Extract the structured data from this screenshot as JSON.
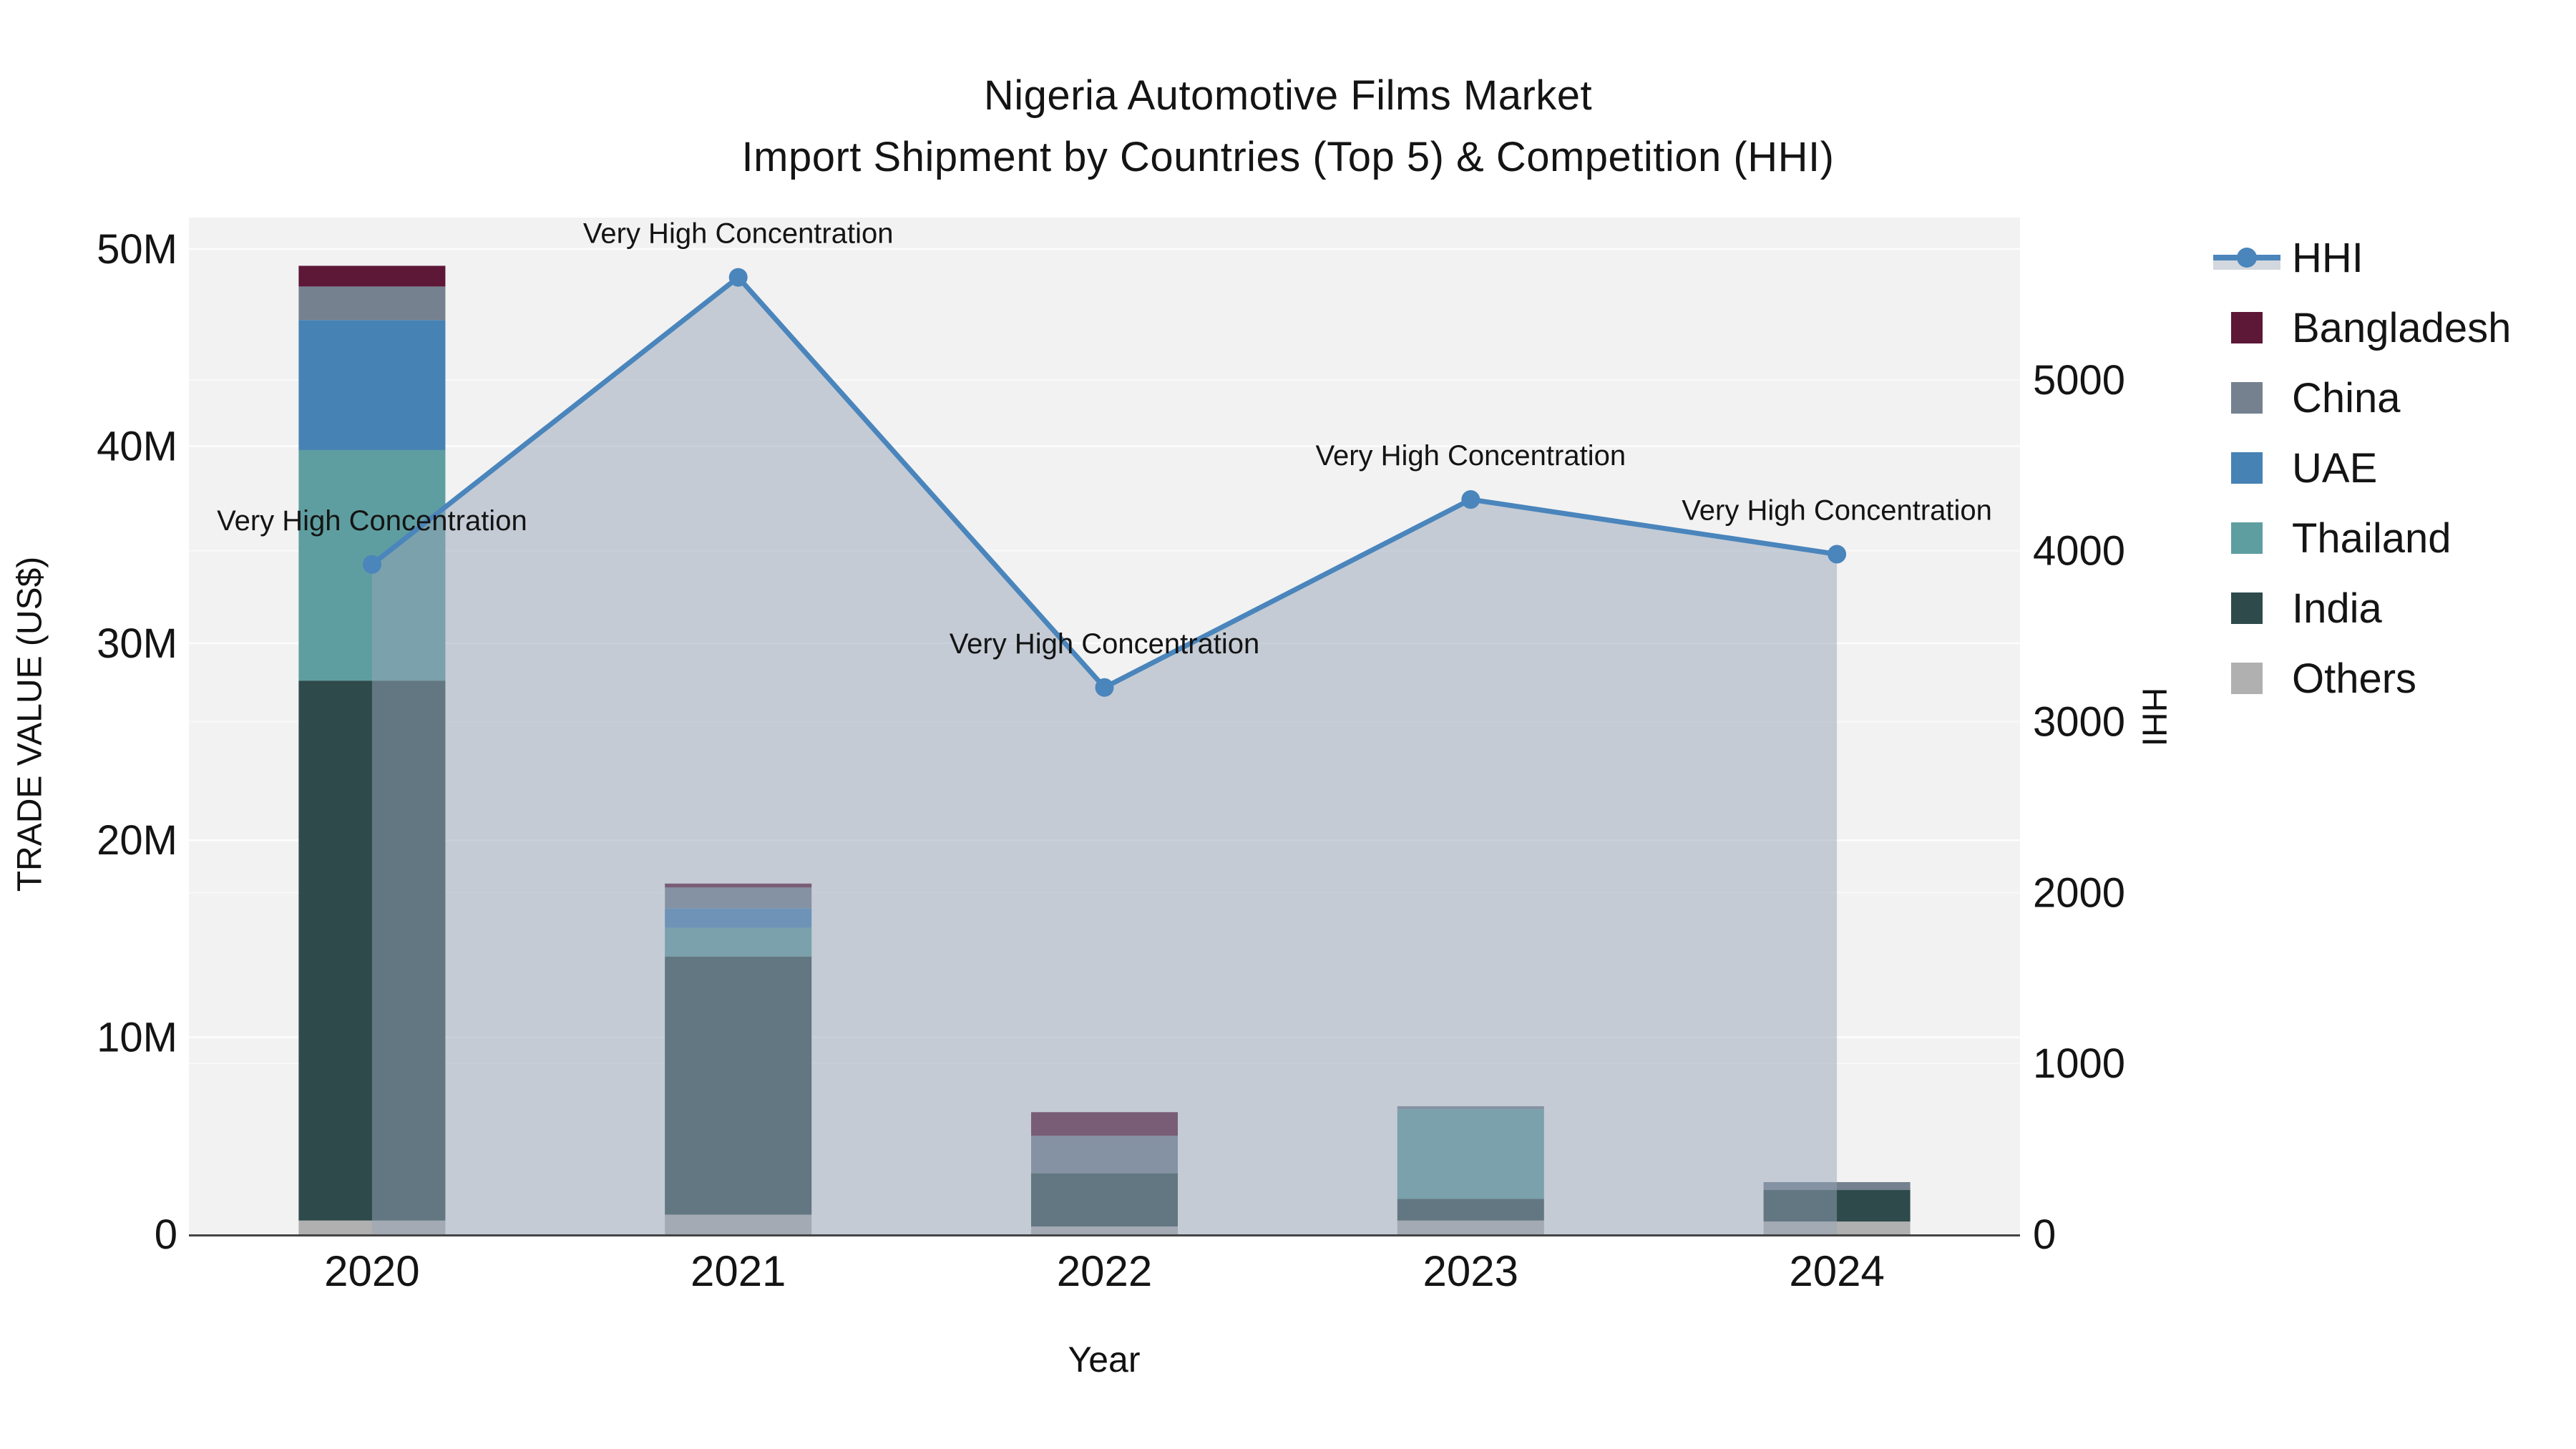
{
  "title": {
    "line1": "Nigeria Automotive Films Market",
    "line2": "Import Shipment by Countries (Top 5) & Competition (HHI)"
  },
  "axes": {
    "y_left_label": "TRADE VALUE (US$)",
    "y_right_label": "HHI",
    "x_label": "Year"
  },
  "colors": {
    "plot_background": "#f2f2f2",
    "axis_line": "#444444",
    "gridline": "#ffffff",
    "hhi_line": "#4a85bc",
    "hhi_area": "#96a3b8",
    "text": "#141414"
  },
  "chart_data": {
    "type": "combo_stacked_bar_line",
    "title": "Nigeria Automotive Films Market - Import Shipment by Countries (Top 5) & Competition (HHI)",
    "categories": [
      "2020",
      "2021",
      "2022",
      "2023",
      "2024"
    ],
    "bar_unit": "US$ million (trade value, left axis)",
    "bar_series": [
      {
        "name": "Others",
        "color": "#b0b0b0",
        "values_musd": [
          0.7,
          1.0,
          0.4,
          0.7,
          0.65
        ]
      },
      {
        "name": "India",
        "color": "#2e4a4a",
        "values_musd": [
          27.4,
          13.1,
          2.7,
          1.1,
          1.6
        ]
      },
      {
        "name": "Thailand",
        "color": "#5f9ea0",
        "values_musd": [
          11.7,
          1.45,
          0,
          4.55,
          0
        ]
      },
      {
        "name": "UAE",
        "color": "#4682b4",
        "values_musd": [
          6.6,
          1.0,
          0,
          0,
          0
        ]
      },
      {
        "name": "China",
        "color": "#75818f",
        "values_musd": [
          1.7,
          1.05,
          1.9,
          0.15,
          0.4
        ]
      },
      {
        "name": "Bangladesh",
        "color": "#5d1737",
        "values_musd": [
          1.05,
          0.2,
          1.2,
          0,
          0
        ]
      }
    ],
    "line_series": {
      "name": "HHI",
      "axis": "right",
      "color": "#4a85bc",
      "area_fill": "#96a3b8",
      "area_opacity": 0.5,
      "values": [
        3920,
        5600,
        3200,
        4300,
        3980
      ]
    },
    "point_annotations": [
      "Very High Concentration",
      "Very High Concentration",
      "Very High Concentration",
      "Very High Concentration",
      "Very High Concentration"
    ],
    "y_left": {
      "label": "TRADE VALUE (US$)",
      "ticks": [
        {
          "label": "0",
          "value": 0
        },
        {
          "label": "10M",
          "value": 10
        },
        {
          "label": "20M",
          "value": 20
        },
        {
          "label": "30M",
          "value": 30
        },
        {
          "label": "40M",
          "value": 40
        },
        {
          "label": "50M",
          "value": 50
        }
      ],
      "range_musd": [
        0,
        51.6
      ]
    },
    "y_right": {
      "label": "HHI",
      "ticks": [
        {
          "label": "0",
          "value": 0
        },
        {
          "label": "1000",
          "value": 1000
        },
        {
          "label": "2000",
          "value": 2000
        },
        {
          "label": "3000",
          "value": 3000
        },
        {
          "label": "4000",
          "value": 4000
        },
        {
          "label": "5000",
          "value": 5000
        }
      ],
      "range": [
        0,
        5950
      ]
    },
    "x_axis": {
      "label": "Year"
    },
    "grid": "horizontal",
    "legend_position": "right",
    "legend": [
      {
        "label": "HHI",
        "type": "line-marker",
        "color": "#4a85bc"
      },
      {
        "label": "Bangladesh",
        "type": "square",
        "color": "#5d1737"
      },
      {
        "label": "China",
        "type": "square",
        "color": "#75818f"
      },
      {
        "label": "UAE",
        "type": "square",
        "color": "#4682b4"
      },
      {
        "label": "Thailand",
        "type": "square",
        "color": "#5f9ea0"
      },
      {
        "label": "India",
        "type": "square",
        "color": "#2e4a4a"
      },
      {
        "label": "Others",
        "type": "square",
        "color": "#b0b0b0"
      }
    ]
  }
}
